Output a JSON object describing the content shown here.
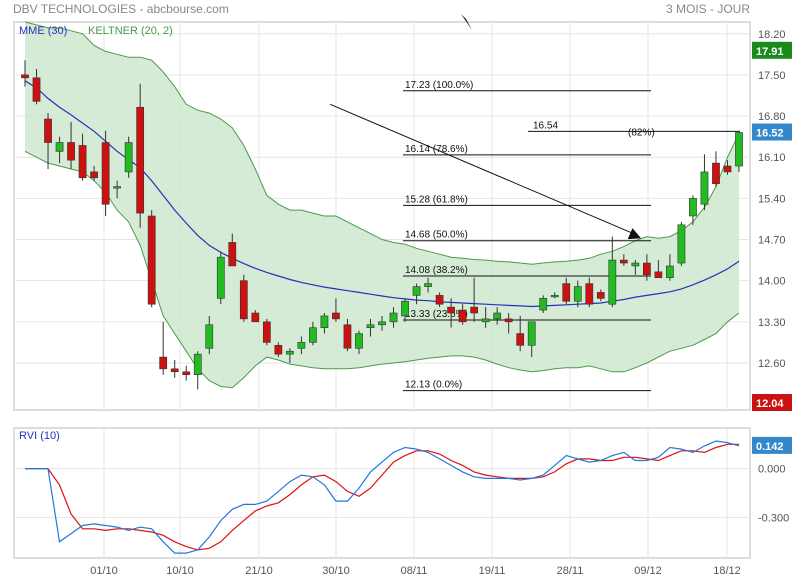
{
  "header": {
    "title": "DBV TECHNOLOGIES - abcbourse.com",
    "period": "3 MOIS - JOUR"
  },
  "colors": {
    "up": "#22bb22",
    "down": "#cc1111",
    "keltner_fill": "#cfe8cf",
    "keltner_line": "#4a9a4a",
    "mme": "#2233bb",
    "rvi": "#2277dd",
    "rvi_signal": "#dd1111",
    "last_price_bg": "#3388cc",
    "max_price_bg": "#1a8a1a",
    "min_price_bg": "#cc1111",
    "grid": "#e4e4e4"
  },
  "price_panel": {
    "legend_mme": "MME (30)",
    "legend_keltner": "KELTNER (20, 2)",
    "tags": {
      "max": "17.91",
      "last": "16.52",
      "min": "12.04"
    }
  },
  "rvi_panel": {
    "legend": "RVI (10)",
    "last_tag": "0.142"
  },
  "chart_data": [
    {
      "type": "candlestick",
      "title": "DBV TECHNOLOGIES",
      "x_labels": [
        "01/10",
        "10/10",
        "21/10",
        "30/10",
        "08/11",
        "19/11",
        "28/11",
        "09/12",
        "18/12"
      ],
      "y_ticks": [
        "18.20",
        "17.50",
        "16.80",
        "16.10",
        "15.40",
        "14.70",
        "14.00",
        "13.30",
        "12.60"
      ],
      "ylim": [
        11.8,
        18.4
      ],
      "grid": true,
      "candles": [
        {
          "o": 17.5,
          "h": 17.75,
          "l": 17.3,
          "c": 17.45
        },
        {
          "o": 17.45,
          "h": 17.6,
          "l": 17.0,
          "c": 17.05
        },
        {
          "o": 16.75,
          "h": 16.85,
          "l": 15.9,
          "c": 16.35
        },
        {
          "o": 16.2,
          "h": 16.45,
          "l": 16.0,
          "c": 16.35
        },
        {
          "o": 16.35,
          "h": 16.7,
          "l": 15.9,
          "c": 16.05
        },
        {
          "o": 16.3,
          "h": 16.5,
          "l": 15.7,
          "c": 15.75
        },
        {
          "o": 15.85,
          "h": 15.95,
          "l": 15.7,
          "c": 15.75
        },
        {
          "o": 16.35,
          "h": 16.55,
          "l": 15.1,
          "c": 15.3
        },
        {
          "o": 15.6,
          "h": 15.7,
          "l": 15.4,
          "c": 15.6
        },
        {
          "o": 15.85,
          "h": 16.45,
          "l": 15.75,
          "c": 16.35
        },
        {
          "o": 16.95,
          "h": 17.35,
          "l": 14.9,
          "c": 15.15
        },
        {
          "o": 15.1,
          "h": 15.2,
          "l": 13.55,
          "c": 13.6
        },
        {
          "o": 12.7,
          "h": 13.3,
          "l": 12.4,
          "c": 12.5
        },
        {
          "o": 12.5,
          "h": 12.65,
          "l": 12.35,
          "c": 12.45
        },
        {
          "o": 12.45,
          "h": 12.55,
          "l": 12.3,
          "c": 12.4
        },
        {
          "o": 12.4,
          "h": 12.8,
          "l": 12.15,
          "c": 12.75
        },
        {
          "o": 12.85,
          "h": 13.4,
          "l": 12.75,
          "c": 13.25
        },
        {
          "o": 13.7,
          "h": 14.5,
          "l": 13.6,
          "c": 14.4
        },
        {
          "o": 14.65,
          "h": 14.8,
          "l": 14.3,
          "c": 14.25
        },
        {
          "o": 14.0,
          "h": 14.1,
          "l": 13.3,
          "c": 13.35
        },
        {
          "o": 13.45,
          "h": 13.5,
          "l": 13.3,
          "c": 13.3
        },
        {
          "o": 13.3,
          "h": 13.35,
          "l": 12.9,
          "c": 12.95
        },
        {
          "o": 12.9,
          "h": 12.95,
          "l": 12.7,
          "c": 12.75
        },
        {
          "o": 12.75,
          "h": 12.85,
          "l": 12.6,
          "c": 12.8
        },
        {
          "o": 12.85,
          "h": 13.05,
          "l": 12.75,
          "c": 12.95
        },
        {
          "o": 12.95,
          "h": 13.3,
          "l": 12.9,
          "c": 13.2
        },
        {
          "o": 13.2,
          "h": 13.45,
          "l": 13.1,
          "c": 13.4
        },
        {
          "o": 13.45,
          "h": 13.7,
          "l": 13.3,
          "c": 13.35
        },
        {
          "o": 13.25,
          "h": 13.35,
          "l": 12.8,
          "c": 12.85
        },
        {
          "o": 12.85,
          "h": 13.15,
          "l": 12.75,
          "c": 13.1
        },
        {
          "o": 13.2,
          "h": 13.35,
          "l": 13.05,
          "c": 13.25
        },
        {
          "o": 13.25,
          "h": 13.4,
          "l": 13.15,
          "c": 13.3
        },
        {
          "o": 13.3,
          "h": 13.55,
          "l": 13.2,
          "c": 13.45
        },
        {
          "o": 13.4,
          "h": 13.7,
          "l": 13.3,
          "c": 13.65
        },
        {
          "o": 13.75,
          "h": 13.95,
          "l": 13.6,
          "c": 13.9
        },
        {
          "o": 13.9,
          "h": 14.05,
          "l": 13.8,
          "c": 13.95
        },
        {
          "o": 13.75,
          "h": 13.8,
          "l": 13.55,
          "c": 13.6
        },
        {
          "o": 13.55,
          "h": 13.7,
          "l": 13.2,
          "c": 13.45
        },
        {
          "o": 13.5,
          "h": 13.6,
          "l": 13.25,
          "c": 13.3
        },
        {
          "o": 13.55,
          "h": 14.05,
          "l": 13.3,
          "c": 13.45
        },
        {
          "o": 13.3,
          "h": 13.55,
          "l": 13.2,
          "c": 13.35
        },
        {
          "o": 13.35,
          "h": 13.55,
          "l": 13.25,
          "c": 13.45
        },
        {
          "o": 13.35,
          "h": 13.45,
          "l": 13.1,
          "c": 13.3
        },
        {
          "o": 13.1,
          "h": 13.4,
          "l": 12.8,
          "c": 12.9
        },
        {
          "o": 12.9,
          "h": 13.3,
          "l": 12.7,
          "c": 13.3
        },
        {
          "o": 13.5,
          "h": 13.75,
          "l": 13.45,
          "c": 13.7
        },
        {
          "o": 13.75,
          "h": 13.8,
          "l": 13.7,
          "c": 13.75
        },
        {
          "o": 13.95,
          "h": 14.05,
          "l": 13.6,
          "c": 13.65
        },
        {
          "o": 13.65,
          "h": 14.0,
          "l": 13.55,
          "c": 13.9
        },
        {
          "o": 13.95,
          "h": 14.05,
          "l": 13.55,
          "c": 13.6
        },
        {
          "o": 13.8,
          "h": 13.85,
          "l": 13.65,
          "c": 13.7
        },
        {
          "o": 13.6,
          "h": 14.75,
          "l": 13.55,
          "c": 14.35
        },
        {
          "o": 14.35,
          "h": 14.45,
          "l": 14.25,
          "c": 14.3
        },
        {
          "o": 14.25,
          "h": 14.35,
          "l": 14.1,
          "c": 14.3
        },
        {
          "o": 14.3,
          "h": 14.45,
          "l": 14.0,
          "c": 14.1
        },
        {
          "o": 14.15,
          "h": 14.35,
          "l": 14.05,
          "c": 14.05
        },
        {
          "o": 14.05,
          "h": 14.45,
          "l": 14.0,
          "c": 14.25
        },
        {
          "o": 14.3,
          "h": 15.0,
          "l": 14.25,
          "c": 14.95
        },
        {
          "o": 15.1,
          "h": 15.45,
          "l": 14.95,
          "c": 15.4
        },
        {
          "o": 15.3,
          "h": 16.15,
          "l": 15.2,
          "c": 15.85
        },
        {
          "o": 16.0,
          "h": 16.2,
          "l": 15.6,
          "c": 15.65
        },
        {
          "o": 15.95,
          "h": 16.05,
          "l": 15.8,
          "c": 15.85
        },
        {
          "o": 15.95,
          "h": 16.55,
          "l": 15.85,
          "c": 16.52
        }
      ],
      "mme": [
        17.4,
        17.28,
        17.1,
        16.95,
        16.82,
        16.68,
        16.54,
        16.37,
        16.2,
        16.06,
        15.92,
        15.7,
        15.45,
        15.2,
        14.98,
        14.77,
        14.6,
        14.48,
        14.38,
        14.29,
        14.21,
        14.14,
        14.08,
        14.02,
        13.97,
        13.93,
        13.89,
        13.86,
        13.83,
        13.8,
        13.77,
        13.74,
        13.71,
        13.69,
        13.67,
        13.66,
        13.64,
        13.63,
        13.62,
        13.61,
        13.6,
        13.59,
        13.58,
        13.57,
        13.56,
        13.57,
        13.58,
        13.59,
        13.6,
        13.61,
        13.62,
        13.65,
        13.68,
        13.72,
        13.75,
        13.78,
        13.81,
        13.86,
        13.93,
        14.01,
        14.1,
        14.2,
        14.33
      ],
      "keltner_upper": [
        18.4,
        18.35,
        18.3,
        18.3,
        18.25,
        18.2,
        18.0,
        17.9,
        17.85,
        17.8,
        17.8,
        17.75,
        17.55,
        17.3,
        17.0,
        16.9,
        16.85,
        16.75,
        16.6,
        16.3,
        15.9,
        15.45,
        15.3,
        15.2,
        15.2,
        15.15,
        15.1,
        15.1,
        15.0,
        14.9,
        14.8,
        14.7,
        14.65,
        14.62,
        14.55,
        14.5,
        14.45,
        14.4,
        14.38,
        14.36,
        14.35,
        14.33,
        14.32,
        14.3,
        14.28,
        14.3,
        14.32,
        14.33,
        14.35,
        14.38,
        14.45,
        14.5,
        14.58,
        14.68,
        14.75,
        14.72,
        14.75,
        14.85,
        15.0,
        15.25,
        15.6,
        16.1,
        16.5
      ],
      "keltner_lower": [
        16.2,
        16.1,
        16.0,
        15.95,
        15.9,
        15.85,
        15.7,
        15.5,
        15.2,
        15.0,
        14.6,
        14.0,
        13.4,
        13.1,
        12.8,
        12.5,
        12.3,
        12.2,
        12.18,
        12.35,
        12.55,
        12.7,
        12.65,
        12.58,
        12.55,
        12.52,
        12.5,
        12.5,
        12.5,
        12.52,
        12.55,
        12.58,
        12.6,
        12.62,
        12.65,
        12.68,
        12.7,
        12.72,
        12.72,
        12.7,
        12.65,
        12.58,
        12.52,
        12.48,
        12.45,
        12.47,
        12.5,
        12.52,
        12.52,
        12.55,
        12.5,
        12.45,
        12.45,
        12.52,
        12.6,
        12.7,
        12.8,
        12.85,
        12.9,
        13.0,
        13.1,
        13.3,
        13.45
      ],
      "fibonacci": [
        {
          "label": "17.23  (100.0%)",
          "y": 17.23
        },
        {
          "label": "16.14  (78.6%)",
          "y": 16.14
        },
        {
          "label": "15.28  (61.8%)",
          "y": 15.28
        },
        {
          "label": "14.68  (50.0%)",
          "y": 14.68
        },
        {
          "label": "14.08  (38.2%)",
          "y": 14.08
        },
        {
          "label": "13.33  (23.6%)",
          "y": 13.33
        },
        {
          "label": "12.13  (0.0%)",
          "y": 12.13
        }
      ],
      "extra_level": {
        "label": "16.54",
        "pct_label": "(82%)",
        "y": 16.54
      },
      "trend_arrow": {
        "from": {
          "i": 26.5,
          "y": 17.0
        },
        "to": {
          "i": 53.5,
          "y": 14.72
        }
      }
    },
    {
      "type": "line",
      "title": "RVI (10)",
      "y_ticks": [
        "0.000",
        "-0.300"
      ],
      "ylim": [
        -0.55,
        0.25
      ],
      "grid": true,
      "series": [
        {
          "name": "RVI",
          "values": [
            0.0,
            0.0,
            0.0,
            -0.45,
            -0.4,
            -0.35,
            -0.34,
            -0.35,
            -0.36,
            -0.38,
            -0.36,
            -0.37,
            -0.45,
            -0.52,
            -0.52,
            -0.5,
            -0.42,
            -0.32,
            -0.25,
            -0.22,
            -0.22,
            -0.2,
            -0.14,
            -0.08,
            -0.04,
            -0.05,
            -0.1,
            -0.2,
            -0.2,
            -0.12,
            -0.02,
            0.04,
            0.1,
            0.13,
            0.12,
            0.1,
            0.06,
            0.02,
            -0.02,
            -0.05,
            -0.06,
            -0.06,
            -0.06,
            -0.07,
            -0.06,
            -0.04,
            0.02,
            0.08,
            0.06,
            0.04,
            0.05,
            0.08,
            0.1,
            0.05,
            0.05,
            0.07,
            0.13,
            0.12,
            0.1,
            0.14,
            0.17,
            0.16,
            0.14
          ]
        },
        {
          "name": "Signal",
          "values": [
            0.0,
            0.0,
            0.0,
            -0.1,
            -0.28,
            -0.37,
            -0.37,
            -0.38,
            -0.37,
            -0.37,
            -0.38,
            -0.39,
            -0.41,
            -0.45,
            -0.48,
            -0.5,
            -0.49,
            -0.45,
            -0.38,
            -0.32,
            -0.26,
            -0.23,
            -0.21,
            -0.16,
            -0.1,
            -0.05,
            -0.04,
            -0.08,
            -0.14,
            -0.17,
            -0.12,
            -0.04,
            0.04,
            0.08,
            0.11,
            0.11,
            0.09,
            0.05,
            0.02,
            -0.02,
            -0.04,
            -0.05,
            -0.06,
            -0.06,
            -0.06,
            -0.05,
            -0.02,
            0.03,
            0.06,
            0.06,
            0.05,
            0.05,
            0.07,
            0.07,
            0.06,
            0.05,
            0.08,
            0.11,
            0.11,
            0.1,
            0.13,
            0.15,
            0.15
          ]
        }
      ]
    }
  ]
}
